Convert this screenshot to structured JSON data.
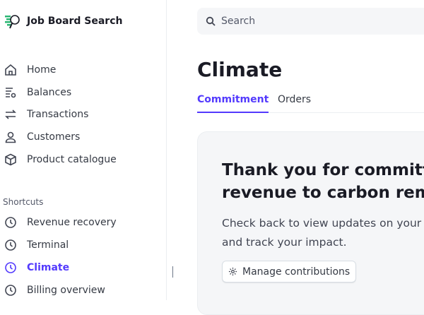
{
  "brand": {
    "name": "Job Board Search",
    "logo_colors": [
      "#2bb673",
      "#1a1b25"
    ]
  },
  "sidebar": {
    "items": [
      {
        "label": "Home",
        "icon": "home-icon"
      },
      {
        "label": "Balances",
        "icon": "balances-icon"
      },
      {
        "label": "Transactions",
        "icon": "transactions-icon"
      },
      {
        "label": "Customers",
        "icon": "customers-icon"
      },
      {
        "label": "Product catalogue",
        "icon": "product-icon"
      }
    ],
    "shortcuts_label": "Shortcuts",
    "shortcuts": [
      {
        "label": "Revenue recovery",
        "icon": "clock-icon"
      },
      {
        "label": "Terminal",
        "icon": "clock-icon"
      },
      {
        "label": "Climate",
        "icon": "clock-icon",
        "active": true
      },
      {
        "label": "Billing overview",
        "icon": "clock-icon"
      }
    ]
  },
  "search": {
    "placeholder": "Search"
  },
  "page": {
    "title": "Climate",
    "tabs": [
      {
        "label": "Commitment",
        "active": true
      },
      {
        "label": "Orders"
      }
    ]
  },
  "card": {
    "heading_line1": "Thank you for committi",
    "heading_line2": "revenue to carbon remo",
    "body_line1": "Check back to view updates on your p",
    "body_line2": "and track your impact.",
    "button": "Manage contributions"
  },
  "colors": {
    "accent": "#533afd"
  }
}
